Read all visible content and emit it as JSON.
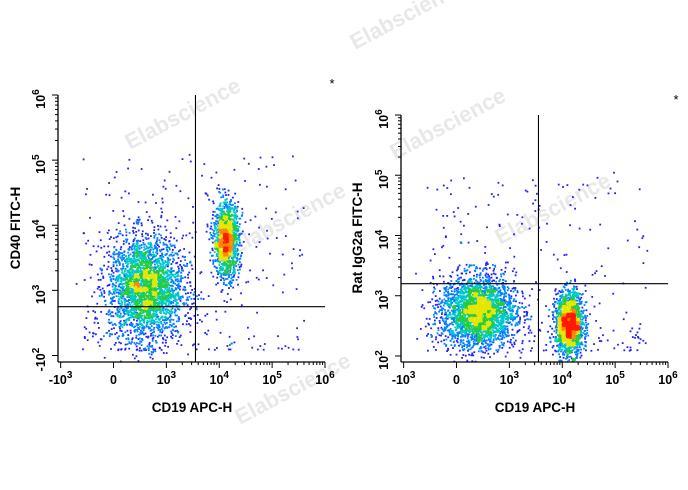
{
  "watermark": "Elabscience",
  "colors": {
    "density": [
      "#1f1fff",
      "#0080ff",
      "#00c8c8",
      "#22cc44",
      "#e6e600",
      "#ff8800",
      "#ff1a00"
    ]
  },
  "chart_data": [
    {
      "type": "scatter",
      "subtype": "flow-cytometry-density-dot-plot",
      "xlabel": "CD19 APC-H",
      "ylabel": "CD40 FITC-H",
      "corner_mark": "*",
      "x_ticks": [
        {
          "pos": -1,
          "base": "-10",
          "exp": "3"
        },
        {
          "pos": 0,
          "base": "0",
          "exp": ""
        },
        {
          "pos": 1,
          "base": "10",
          "exp": "3"
        },
        {
          "pos": 2,
          "base": "10",
          "exp": "4"
        },
        {
          "pos": 3,
          "base": "10",
          "exp": "5"
        },
        {
          "pos": 4,
          "base": "10",
          "exp": "6"
        }
      ],
      "y_ticks": [
        {
          "pos": 0,
          "base": "-10",
          "exp": "2"
        },
        {
          "pos": 1,
          "base": "10",
          "exp": "3"
        },
        {
          "pos": 2,
          "base": "10",
          "exp": "4"
        },
        {
          "pos": 3,
          "base": "10",
          "exp": "5"
        },
        {
          "pos": 4,
          "base": "10",
          "exp": "6"
        }
      ],
      "gate": {
        "x": 1.55,
        "y": 0.75
      },
      "populations": [
        {
          "cx": 0.6,
          "cy": 1.05,
          "sx": 0.35,
          "sy": 0.4,
          "n": 2800
        },
        {
          "cx": 2.12,
          "cy": 1.78,
          "sx": 0.12,
          "sy": 0.28,
          "n": 1300
        }
      ]
    },
    {
      "type": "scatter",
      "subtype": "flow-cytometry-density-dot-plot",
      "xlabel": "CD19 APC-H",
      "ylabel": "Rat IgG2a FITC-H",
      "corner_mark": "*",
      "x_ticks": [
        {
          "pos": -1,
          "base": "-10",
          "exp": "3"
        },
        {
          "pos": 0,
          "base": "0",
          "exp": ""
        },
        {
          "pos": 1,
          "base": "10",
          "exp": "3"
        },
        {
          "pos": 2,
          "base": "10",
          "exp": "4"
        },
        {
          "pos": 3,
          "base": "10",
          "exp": "5"
        },
        {
          "pos": 4,
          "base": "10",
          "exp": "6"
        }
      ],
      "y_ticks": [
        {
          "pos": 0,
          "base": "10",
          "exp": "2"
        },
        {
          "pos": 1,
          "base": "10",
          "exp": "3"
        },
        {
          "pos": 2,
          "base": "10",
          "exp": "4"
        },
        {
          "pos": 3,
          "base": "10",
          "exp": "5"
        },
        {
          "pos": 4,
          "base": "10",
          "exp": "6"
        }
      ],
      "gate": {
        "x": 1.55,
        "y": 1.2
      },
      "populations": [
        {
          "cx": 0.4,
          "cy": 0.75,
          "sx": 0.35,
          "sy": 0.3,
          "n": 2600
        },
        {
          "cx": 2.12,
          "cy": 0.55,
          "sx": 0.13,
          "sy": 0.26,
          "n": 1700
        }
      ]
    }
  ]
}
